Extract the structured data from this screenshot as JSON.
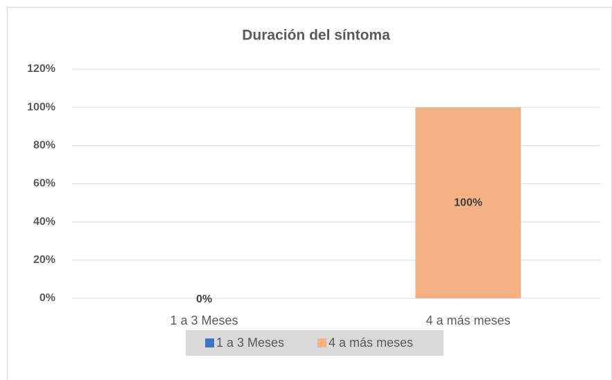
{
  "chart_data": {
    "type": "bar",
    "title": "Duración del síntoma",
    "categories": [
      "1 a 3 Meses",
      "4 a más meses"
    ],
    "values": [
      0,
      100
    ],
    "value_labels": [
      "0%",
      "100%"
    ],
    "colors": [
      "#4472c4",
      "#f4b183"
    ],
    "ylim": [
      0,
      120
    ],
    "yticks": [
      {
        "value": 0,
        "label": "0%"
      },
      {
        "value": 20,
        "label": "20%"
      },
      {
        "value": 40,
        "label": "40%"
      },
      {
        "value": 60,
        "label": "60%"
      },
      {
        "value": 80,
        "label": "80%"
      },
      {
        "value": 100,
        "label": "100%"
      },
      {
        "value": 120,
        "label": "120%"
      }
    ],
    "grid": true,
    "legend": "bottom"
  }
}
